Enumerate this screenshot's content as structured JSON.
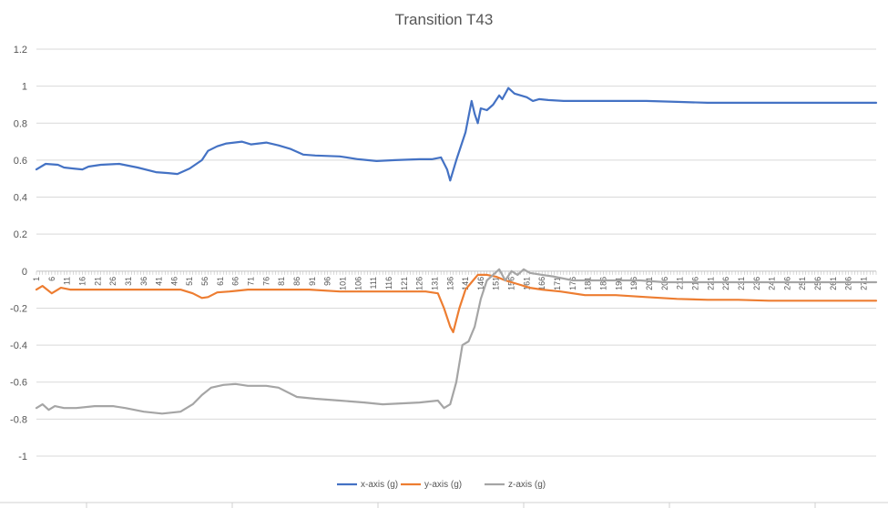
{
  "chart_data": {
    "type": "line",
    "title": "Transition T43",
    "ylim": [
      -1,
      1.2
    ],
    "y_ticks": [
      "1.2",
      "1",
      "0.8",
      "0.6",
      "0.4",
      "0.2",
      "0",
      "-0.2",
      "-0.4",
      "-0.6",
      "-0.8",
      "-1"
    ],
    "y_tick_values": [
      1.2,
      1,
      0.8,
      0.6,
      0.4,
      0.2,
      0,
      -0.2,
      -0.4,
      -0.6,
      -0.8,
      -1
    ],
    "x_range": [
      1,
      275
    ],
    "x_tick_labels": [
      "1",
      "6",
      "11",
      "16",
      "21",
      "26",
      "31",
      "36",
      "41",
      "46",
      "51",
      "56",
      "61",
      "66",
      "71",
      "76",
      "81",
      "86",
      "91",
      "96",
      "101",
      "106",
      "111",
      "116",
      "121",
      "126",
      "131",
      "136",
      "141",
      "146",
      "151",
      "156",
      "161",
      "166",
      "171",
      "176",
      "181",
      "186",
      "191",
      "196",
      "201",
      "206",
      "211",
      "216",
      "221",
      "226",
      "231",
      "236",
      "241",
      "246",
      "251",
      "256",
      "261",
      "266",
      "271"
    ],
    "grid": "horizontal",
    "legend_position": "bottom",
    "series": [
      {
        "name": "x-axis (g)",
        "color": "#4472C4",
        "points": [
          [
            1,
            0.55
          ],
          [
            4,
            0.58
          ],
          [
            8,
            0.575
          ],
          [
            10,
            0.56
          ],
          [
            13,
            0.555
          ],
          [
            16,
            0.55
          ],
          [
            18,
            0.565
          ],
          [
            22,
            0.575
          ],
          [
            28,
            0.58
          ],
          [
            34,
            0.56
          ],
          [
            40,
            0.535
          ],
          [
            44,
            0.53
          ],
          [
            47,
            0.525
          ],
          [
            51,
            0.555
          ],
          [
            55,
            0.6
          ],
          [
            57,
            0.65
          ],
          [
            60,
            0.675
          ],
          [
            63,
            0.69
          ],
          [
            68,
            0.7
          ],
          [
            71,
            0.685
          ],
          [
            76,
            0.695
          ],
          [
            80,
            0.68
          ],
          [
            84,
            0.66
          ],
          [
            88,
            0.63
          ],
          [
            92,
            0.625
          ],
          [
            100,
            0.62
          ],
          [
            106,
            0.605
          ],
          [
            112,
            0.595
          ],
          [
            118,
            0.6
          ],
          [
            126,
            0.605
          ],
          [
            130,
            0.605
          ],
          [
            133,
            0.615
          ],
          [
            135,
            0.55
          ],
          [
            136,
            0.49
          ],
          [
            138,
            0.6
          ],
          [
            140,
            0.7
          ],
          [
            141,
            0.75
          ],
          [
            143,
            0.92
          ],
          [
            144,
            0.85
          ],
          [
            145,
            0.8
          ],
          [
            146,
            0.88
          ],
          [
            148,
            0.87
          ],
          [
            150,
            0.9
          ],
          [
            152,
            0.95
          ],
          [
            153,
            0.93
          ],
          [
            155,
            0.99
          ],
          [
            157,
            0.96
          ],
          [
            159,
            0.95
          ],
          [
            161,
            0.94
          ],
          [
            163,
            0.92
          ],
          [
            165,
            0.93
          ],
          [
            168,
            0.925
          ],
          [
            173,
            0.92
          ],
          [
            180,
            0.92
          ],
          [
            190,
            0.92
          ],
          [
            200,
            0.92
          ],
          [
            210,
            0.915
          ],
          [
            220,
            0.91
          ],
          [
            230,
            0.91
          ],
          [
            240,
            0.91
          ],
          [
            250,
            0.91
          ],
          [
            260,
            0.91
          ],
          [
            275,
            0.91
          ]
        ]
      },
      {
        "name": "y-axis (g)",
        "color": "#ED7D31",
        "points": [
          [
            1,
            -0.1
          ],
          [
            3,
            -0.08
          ],
          [
            6,
            -0.12
          ],
          [
            9,
            -0.09
          ],
          [
            12,
            -0.1
          ],
          [
            20,
            -0.1
          ],
          [
            30,
            -0.1
          ],
          [
            40,
            -0.1
          ],
          [
            48,
            -0.1
          ],
          [
            52,
            -0.12
          ],
          [
            55,
            -0.145
          ],
          [
            57,
            -0.14
          ],
          [
            60,
            -0.115
          ],
          [
            64,
            -0.11
          ],
          [
            70,
            -0.1
          ],
          [
            80,
            -0.1
          ],
          [
            90,
            -0.1
          ],
          [
            100,
            -0.11
          ],
          [
            110,
            -0.11
          ],
          [
            120,
            -0.11
          ],
          [
            128,
            -0.11
          ],
          [
            132,
            -0.12
          ],
          [
            134,
            -0.2
          ],
          [
            136,
            -0.3
          ],
          [
            137,
            -0.33
          ],
          [
            139,
            -0.2
          ],
          [
            141,
            -0.1
          ],
          [
            143,
            -0.06
          ],
          [
            145,
            -0.02
          ],
          [
            148,
            -0.02
          ],
          [
            151,
            -0.03
          ],
          [
            154,
            -0.05
          ],
          [
            158,
            -0.07
          ],
          [
            162,
            -0.09
          ],
          [
            166,
            -0.1
          ],
          [
            172,
            -0.11
          ],
          [
            180,
            -0.13
          ],
          [
            190,
            -0.13
          ],
          [
            200,
            -0.14
          ],
          [
            210,
            -0.15
          ],
          [
            220,
            -0.155
          ],
          [
            230,
            -0.155
          ],
          [
            240,
            -0.16
          ],
          [
            250,
            -0.16
          ],
          [
            260,
            -0.16
          ],
          [
            275,
            -0.16
          ]
        ]
      },
      {
        "name": "z-axis (g)",
        "color": "#A5A5A5",
        "points": [
          [
            1,
            -0.74
          ],
          [
            3,
            -0.72
          ],
          [
            5,
            -0.75
          ],
          [
            7,
            -0.73
          ],
          [
            10,
            -0.74
          ],
          [
            14,
            -0.74
          ],
          [
            20,
            -0.73
          ],
          [
            26,
            -0.73
          ],
          [
            30,
            -0.74
          ],
          [
            36,
            -0.76
          ],
          [
            42,
            -0.77
          ],
          [
            48,
            -0.76
          ],
          [
            52,
            -0.72
          ],
          [
            55,
            -0.67
          ],
          [
            58,
            -0.63
          ],
          [
            62,
            -0.615
          ],
          [
            66,
            -0.61
          ],
          [
            70,
            -0.62
          ],
          [
            76,
            -0.62
          ],
          [
            80,
            -0.63
          ],
          [
            86,
            -0.68
          ],
          [
            92,
            -0.69
          ],
          [
            100,
            -0.7
          ],
          [
            108,
            -0.71
          ],
          [
            114,
            -0.72
          ],
          [
            120,
            -0.715
          ],
          [
            126,
            -0.71
          ],
          [
            132,
            -0.7
          ],
          [
            134,
            -0.74
          ],
          [
            136,
            -0.72
          ],
          [
            138,
            -0.6
          ],
          [
            140,
            -0.4
          ],
          [
            142,
            -0.38
          ],
          [
            144,
            -0.3
          ],
          [
            146,
            -0.15
          ],
          [
            148,
            -0.05
          ],
          [
            150,
            -0.02
          ],
          [
            152,
            0.01
          ],
          [
            154,
            -0.05
          ],
          [
            156,
            0
          ],
          [
            158,
            -0.02
          ],
          [
            160,
            0.01
          ],
          [
            162,
            -0.01
          ],
          [
            166,
            -0.02
          ],
          [
            170,
            -0.03
          ],
          [
            176,
            -0.05
          ],
          [
            184,
            -0.05
          ],
          [
            190,
            -0.05
          ],
          [
            198,
            -0.05
          ],
          [
            206,
            -0.06
          ],
          [
            216,
            -0.06
          ],
          [
            226,
            -0.06
          ],
          [
            236,
            -0.06
          ],
          [
            246,
            -0.06
          ],
          [
            256,
            -0.06
          ],
          [
            266,
            -0.06
          ],
          [
            275,
            -0.06
          ]
        ]
      }
    ]
  }
}
